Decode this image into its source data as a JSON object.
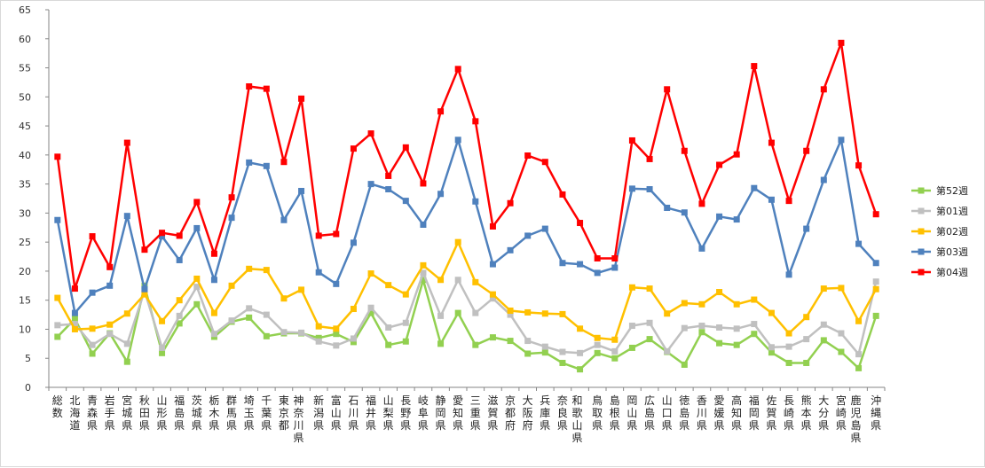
{
  "chart_data": {
    "type": "line",
    "title": "",
    "xlabel": "",
    "ylabel": "",
    "ylim": [
      0,
      65
    ],
    "yticks": [
      0,
      5,
      10,
      15,
      20,
      25,
      30,
      35,
      40,
      45,
      50,
      55,
      60,
      65
    ],
    "grid": false,
    "legend_position": "right",
    "categories": [
      "総数",
      "北海道",
      "青森県",
      "岩手県",
      "宮城県",
      "秋田県",
      "山形県",
      "福島県",
      "茨城県",
      "栃木県",
      "群馬県",
      "埼玉県",
      "千葉県",
      "東京都",
      "神奈川県",
      "新潟県",
      "富山県",
      "石川県",
      "福井県",
      "山梨県",
      "長野県",
      "岐阜県",
      "静岡県",
      "愛知県",
      "三重県",
      "滋賀県",
      "京都府",
      "大阪府",
      "兵庫県",
      "奈良県",
      "和歌山県",
      "鳥取県",
      "島根県",
      "岡山県",
      "広島県",
      "山口県",
      "徳島県",
      "香川県",
      "愛媛県",
      "高知県",
      "福岡県",
      "佐賀県",
      "長崎県",
      "熊本県",
      "大分県",
      "宮崎県",
      "鹿児島県",
      "沖縄県"
    ],
    "series": [
      {
        "name": "第52週",
        "color": "#92d050",
        "marker": "square",
        "values": [
          8.7,
          11.8,
          5.8,
          9.3,
          4.4,
          17.5,
          5.9,
          11.0,
          14.3,
          8.7,
          11.3,
          12.0,
          8.8,
          9.3,
          9.3,
          8.5,
          9.2,
          7.8,
          12.8,
          7.3,
          7.9,
          18.5,
          7.5,
          12.8,
          7.3,
          8.6,
          8.0,
          5.8,
          6.0,
          4.2,
          3.1,
          5.9,
          5.0,
          6.8,
          8.3,
          6.1,
          3.9,
          9.5,
          7.6,
          7.3,
          9.2,
          6.0,
          4.2,
          4.2,
          8.1,
          6.1,
          3.3,
          12.3
        ]
      },
      {
        "name": "第01週",
        "color": "#c0c0c0",
        "marker": "square",
        "values": [
          10.7,
          10.9,
          7.3,
          9.2,
          7.5,
          16.6,
          6.8,
          12.3,
          17.3,
          9.2,
          11.5,
          13.6,
          12.5,
          9.5,
          9.4,
          7.9,
          7.2,
          8.4,
          13.7,
          10.3,
          11.1,
          19.7,
          12.3,
          18.5,
          12.8,
          15.3,
          12.5,
          8.0,
          7.0,
          6.1,
          5.9,
          7.3,
          6.2,
          10.6,
          11.1,
          6.2,
          10.2,
          10.6,
          10.3,
          10.1,
          10.9,
          6.9,
          7.0,
          8.3,
          10.8,
          9.3,
          5.7,
          18.2
        ]
      },
      {
        "name": "第02週",
        "color": "#ffc000",
        "marker": "square",
        "values": [
          15.4,
          10.0,
          10.1,
          10.8,
          12.7,
          16.0,
          11.4,
          15.0,
          18.7,
          12.8,
          17.5,
          20.4,
          20.2,
          15.3,
          16.8,
          10.5,
          10.1,
          13.5,
          19.6,
          17.6,
          16.0,
          21.0,
          18.5,
          25.0,
          18.1,
          16.0,
          13.2,
          12.9,
          12.7,
          12.6,
          10.1,
          8.5,
          8.2,
          17.2,
          17.0,
          12.7,
          14.5,
          14.3,
          16.4,
          14.3,
          15.1,
          12.8,
          9.3,
          12.1,
          17.0,
          17.1,
          11.4,
          16.9
        ]
      },
      {
        "name": "第03週",
        "color": "#4f81bd",
        "marker": "square",
        "values": [
          28.8,
          12.8,
          16.3,
          17.5,
          29.5,
          16.9,
          26.0,
          21.9,
          27.4,
          18.5,
          29.2,
          38.7,
          38.1,
          28.8,
          33.8,
          19.8,
          17.8,
          24.9,
          35.0,
          34.1,
          32.1,
          28.0,
          33.3,
          42.6,
          32.0,
          21.2,
          23.6,
          26.1,
          27.3,
          21.4,
          21.2,
          19.7,
          20.6,
          34.2,
          34.1,
          30.9,
          30.1,
          23.9,
          29.4,
          28.9,
          34.3,
          32.3,
          19.4,
          27.3,
          35.7,
          42.6,
          24.7,
          21.4
        ]
      },
      {
        "name": "第04週",
        "color": "#ff0000",
        "marker": "square",
        "values": [
          39.7,
          17.0,
          26.0,
          20.7,
          42.1,
          23.7,
          26.6,
          26.1,
          31.9,
          23.0,
          32.7,
          51.8,
          51.4,
          38.8,
          49.7,
          26.1,
          26.4,
          41.1,
          43.7,
          36.4,
          41.3,
          35.1,
          47.5,
          54.8,
          45.8,
          27.7,
          31.7,
          39.9,
          38.8,
          33.2,
          28.3,
          22.2,
          22.2,
          42.5,
          39.3,
          51.3,
          40.7,
          31.6,
          38.3,
          40.1,
          55.3,
          42.1,
          32.1,
          40.7,
          51.3,
          59.3,
          38.2,
          29.8
        ]
      }
    ]
  }
}
